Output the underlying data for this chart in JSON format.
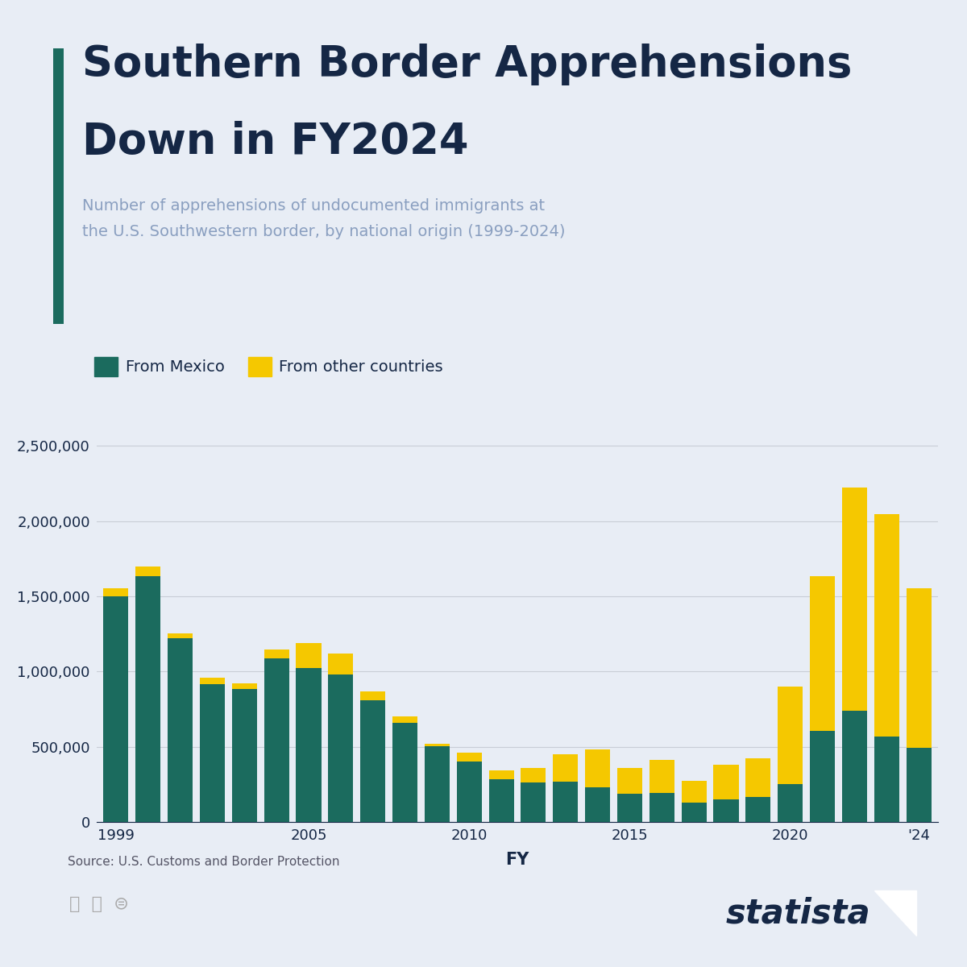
{
  "title_line1": "Southern Border Apprehensions",
  "title_line2": "Down in FY2024",
  "subtitle_line1": "Number of apprehensions of undocumented immigrants at",
  "subtitle_line2": "the U.S. Southwestern border, by national origin (1999‑2024)",
  "xlabel": "FY",
  "legend_mexico": "From Mexico",
  "legend_other": "From other countries",
  "background_color": "#e8edf5",
  "bar_color_mexico": "#1b6b5e",
  "bar_color_other": "#f5c800",
  "title_color": "#152745",
  "subtitle_color": "#8a9fc0",
  "grid_color": "#c8cdd6",
  "years": [
    1999,
    2000,
    2001,
    2002,
    2003,
    2004,
    2005,
    2006,
    2007,
    2008,
    2009,
    2010,
    2011,
    2012,
    2013,
    2014,
    2015,
    2016,
    2017,
    2018,
    2019,
    2020,
    2021,
    2022,
    2023,
    2024
  ],
  "mexico": [
    1499000,
    1636000,
    1224000,
    917000,
    882000,
    1085000,
    1023000,
    981000,
    808000,
    661000,
    503000,
    404000,
    286000,
    265000,
    268000,
    229000,
    188000,
    192000,
    130000,
    152000,
    166000,
    254000,
    608000,
    737000,
    569000,
    494000
  ],
  "other": [
    53000,
    64000,
    30000,
    40000,
    40000,
    60000,
    165000,
    139000,
    62000,
    39000,
    17000,
    59000,
    55000,
    95000,
    184000,
    252000,
    170000,
    218000,
    143000,
    229000,
    259000,
    646000,
    1026000,
    1487000,
    1476000,
    1062000
  ],
  "ylim": [
    0,
    2700000
  ],
  "yticks": [
    0,
    500000,
    1000000,
    1500000,
    2000000,
    2500000
  ],
  "shown_years": [
    1999,
    2005,
    2010,
    2015,
    2020,
    2024
  ],
  "source_text": "Source: U.S. Customs and Border Protection",
  "statista_text": "statista",
  "accent_color": "#1b6b5e"
}
